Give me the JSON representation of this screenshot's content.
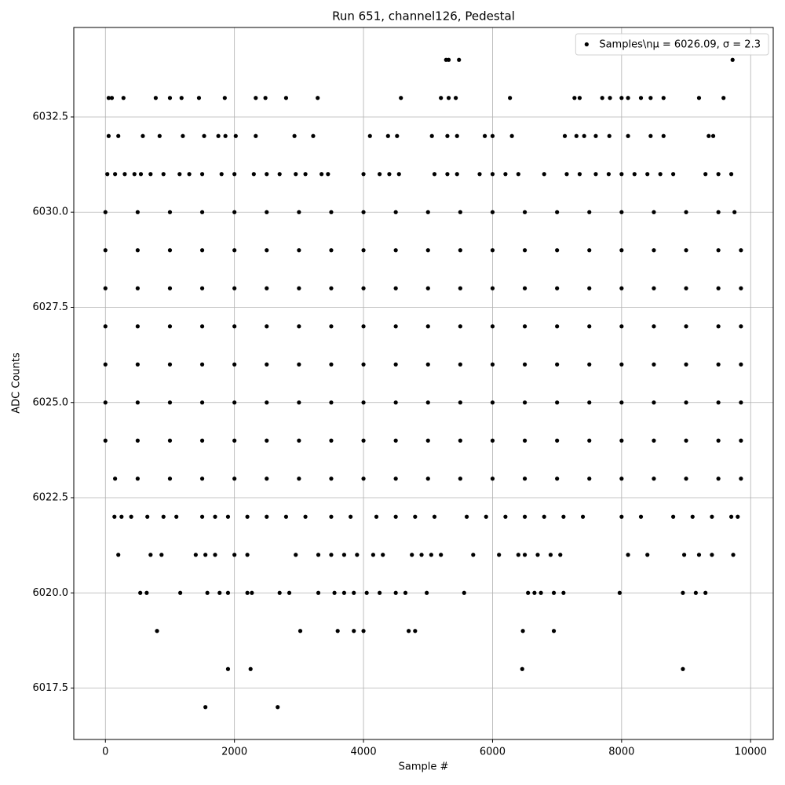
{
  "chart_data": {
    "type": "scatter",
    "title": "Run 651, channel126, Pedestal",
    "x_label": "Sample #",
    "y_label": "ADC Counts",
    "xlim": [
      -490,
      10350
    ],
    "ylim": [
      6016.15,
      6034.85
    ],
    "xticks": [
      0,
      2000,
      4000,
      6000,
      8000,
      10000
    ],
    "yticks": [
      6017.5,
      {
        "value": 6020,
        "label": "6020.0"
      },
      6022.5,
      {
        "value": 6025,
        "label": "6025.0"
      },
      6027.5,
      {
        "value": 6030,
        "label": "6030.0"
      },
      6032.5
    ],
    "grid": true,
    "legend": "upper right",
    "series": [
      {
        "name": "Samples\\nμ = 6026.09, σ = 2.3",
        "color": "#000000",
        "x": [
          5280,
          5320,
          5480,
          9720,
          50,
          100,
          280,
          780,
          1000,
          1180,
          1450,
          1850,
          2330,
          2480,
          2800,
          3290,
          4580,
          5200,
          5320,
          5430,
          6270,
          7270,
          7350,
          7700,
          7820,
          8000,
          8100,
          8300,
          8450,
          8650,
          9200,
          9580,
          50,
          200,
          580,
          840,
          1200,
          1530,
          1750,
          1860,
          2020,
          2330,
          2930,
          3220,
          4100,
          4380,
          4520,
          5060,
          5300,
          5450,
          5880,
          6000,
          6300,
          7120,
          7300,
          7420,
          7600,
          7810,
          8100,
          8450,
          8650,
          9350,
          9420,
          30,
          150,
          300,
          450,
          550,
          700,
          900,
          1150,
          1300,
          1500,
          1800,
          2000,
          2300,
          2500,
          2700,
          2950,
          3100,
          3350,
          3450,
          4000,
          4250,
          4400,
          4550,
          5100,
          5300,
          5450,
          5800,
          6000,
          6200,
          6400,
          6800,
          7150,
          7350,
          7600,
          7800,
          8000,
          8200,
          8400,
          8600,
          8800,
          9300,
          9500,
          9700,
          0,
          500,
          1000,
          1500,
          2000,
          2500,
          3000,
          3500,
          4000,
          4500,
          5000,
          5500,
          6000,
          6500,
          7000,
          7500,
          8000,
          8500,
          9000,
          9500,
          9750,
          0,
          500,
          1000,
          1500,
          2000,
          2500,
          3000,
          3500,
          4000,
          4500,
          5000,
          5500,
          6000,
          6500,
          7000,
          7500,
          8000,
          8500,
          9000,
          9500,
          9850,
          0,
          500,
          1000,
          1500,
          2000,
          2500,
          3000,
          3500,
          4000,
          4500,
          5000,
          5500,
          6000,
          6500,
          7000,
          7500,
          8000,
          8500,
          9000,
          9500,
          9850,
          0,
          500,
          1000,
          1500,
          2000,
          2500,
          3000,
          3500,
          4000,
          4500,
          5000,
          5500,
          6000,
          6500,
          7000,
          7500,
          8000,
          8500,
          9000,
          9500,
          9850,
          0,
          500,
          1000,
          1500,
          2000,
          2500,
          3000,
          3500,
          4000,
          4500,
          5000,
          5500,
          6000,
          6500,
          7000,
          7500,
          8000,
          8500,
          9000,
          9500,
          9850,
          0,
          500,
          1000,
          1500,
          2000,
          2500,
          3000,
          3500,
          4000,
          4500,
          5000,
          5500,
          6000,
          6500,
          7000,
          7500,
          8000,
          8500,
          9000,
          9500,
          9850,
          0,
          500,
          1000,
          1500,
          2000,
          2500,
          3000,
          3500,
          4000,
          4500,
          5000,
          5500,
          6000,
          6500,
          7000,
          7500,
          8000,
          8500,
          9000,
          9500,
          9850,
          150,
          500,
          1000,
          1500,
          2000,
          2500,
          3000,
          3500,
          4000,
          4500,
          5000,
          5500,
          6000,
          6500,
          7000,
          7500,
          8000,
          8500,
          9000,
          9500,
          9850,
          140,
          250,
          400,
          650,
          900,
          1100,
          1500,
          1700,
          1900,
          2200,
          2500,
          2800,
          3100,
          3500,
          3800,
          4200,
          4500,
          4800,
          5100,
          5600,
          5900,
          6200,
          6500,
          6800,
          7100,
          7400,
          8000,
          8300,
          8800,
          9100,
          9400,
          9700,
          9800,
          200,
          700,
          870,
          1400,
          1550,
          1700,
          2000,
          2200,
          2950,
          3300,
          3500,
          3700,
          3900,
          4150,
          4300,
          4750,
          4900,
          5050,
          5200,
          5700,
          6100,
          6400,
          6500,
          6700,
          6900,
          7050,
          8100,
          8400,
          8970,
          9200,
          9400,
          9730,
          540,
          640,
          1160,
          1580,
          1770,
          1900,
          2200,
          2270,
          2700,
          2850,
          3300,
          3550,
          3700,
          3850,
          4050,
          4250,
          4500,
          4650,
          4980,
          5560,
          6550,
          6650,
          6750,
          6950,
          7100,
          7970,
          8950,
          9150,
          9300,
          800,
          3020,
          3600,
          3850,
          4000,
          4700,
          4800,
          6470,
          6950,
          1900,
          2250,
          6460,
          8950,
          1550,
          2670
        ],
        "values": [
          6034,
          6034,
          6034,
          6034,
          6033,
          6033,
          6033,
          6033,
          6033,
          6033,
          6033,
          6033,
          6033,
          6033,
          6033,
          6033,
          6033,
          6033,
          6033,
          6033,
          6033,
          6033,
          6033,
          6033,
          6033,
          6033,
          6033,
          6033,
          6033,
          6033,
          6033,
          6033,
          6032,
          6032,
          6032,
          6032,
          6032,
          6032,
          6032,
          6032,
          6032,
          6032,
          6032,
          6032,
          6032,
          6032,
          6032,
          6032,
          6032,
          6032,
          6032,
          6032,
          6032,
          6032,
          6032,
          6032,
          6032,
          6032,
          6032,
          6032,
          6032,
          6032,
          6032,
          6031,
          6031,
          6031,
          6031,
          6031,
          6031,
          6031,
          6031,
          6031,
          6031,
          6031,
          6031,
          6031,
          6031,
          6031,
          6031,
          6031,
          6031,
          6031,
          6031,
          6031,
          6031,
          6031,
          6031,
          6031,
          6031,
          6031,
          6031,
          6031,
          6031,
          6031,
          6031,
          6031,
          6031,
          6031,
          6031,
          6031,
          6031,
          6031,
          6031,
          6031,
          6031,
          6031,
          6030,
          6030,
          6030,
          6030,
          6030,
          6030,
          6030,
          6030,
          6030,
          6030,
          6030,
          6030,
          6030,
          6030,
          6030,
          6030,
          6030,
          6030,
          6030,
          6030,
          6030,
          6029,
          6029,
          6029,
          6029,
          6029,
          6029,
          6029,
          6029,
          6029,
          6029,
          6029,
          6029,
          6029,
          6029,
          6029,
          6029,
          6029,
          6029,
          6029,
          6029,
          6029,
          6028,
          6028,
          6028,
          6028,
          6028,
          6028,
          6028,
          6028,
          6028,
          6028,
          6028,
          6028,
          6028,
          6028,
          6028,
          6028,
          6028,
          6028,
          6028,
          6028,
          6028,
          6027,
          6027,
          6027,
          6027,
          6027,
          6027,
          6027,
          6027,
          6027,
          6027,
          6027,
          6027,
          6027,
          6027,
          6027,
          6027,
          6027,
          6027,
          6027,
          6027,
          6027,
          6026,
          6026,
          6026,
          6026,
          6026,
          6026,
          6026,
          6026,
          6026,
          6026,
          6026,
          6026,
          6026,
          6026,
          6026,
          6026,
          6026,
          6026,
          6026,
          6026,
          6026,
          6025,
          6025,
          6025,
          6025,
          6025,
          6025,
          6025,
          6025,
          6025,
          6025,
          6025,
          6025,
          6025,
          6025,
          6025,
          6025,
          6025,
          6025,
          6025,
          6025,
          6025,
          6024,
          6024,
          6024,
          6024,
          6024,
          6024,
          6024,
          6024,
          6024,
          6024,
          6024,
          6024,
          6024,
          6024,
          6024,
          6024,
          6024,
          6024,
          6024,
          6024,
          6024,
          6023,
          6023,
          6023,
          6023,
          6023,
          6023,
          6023,
          6023,
          6023,
          6023,
          6023,
          6023,
          6023,
          6023,
          6023,
          6023,
          6023,
          6023,
          6023,
          6023,
          6023,
          6022,
          6022,
          6022,
          6022,
          6022,
          6022,
          6022,
          6022,
          6022,
          6022,
          6022,
          6022,
          6022,
          6022,
          6022,
          6022,
          6022,
          6022,
          6022,
          6022,
          6022,
          6022,
          6022,
          6022,
          6022,
          6022,
          6022,
          6022,
          6022,
          6022,
          6022,
          6022,
          6022,
          6021,
          6021,
          6021,
          6021,
          6021,
          6021,
          6021,
          6021,
          6021,
          6021,
          6021,
          6021,
          6021,
          6021,
          6021,
          6021,
          6021,
          6021,
          6021,
          6021,
          6021,
          6021,
          6021,
          6021,
          6021,
          6021,
          6021,
          6021,
          6021,
          6021,
          6021,
          6021,
          6020,
          6020,
          6020,
          6020,
          6020,
          6020,
          6020,
          6020,
          6020,
          6020,
          6020,
          6020,
          6020,
          6020,
          6020,
          6020,
          6020,
          6020,
          6020,
          6020,
          6020,
          6020,
          6020,
          6020,
          6020,
          6020,
          6020,
          6020,
          6020,
          6019,
          6019,
          6019,
          6019,
          6019,
          6019,
          6019,
          6019,
          6019,
          6018,
          6018,
          6018,
          6018,
          6017,
          6017
        ]
      }
    ]
  }
}
